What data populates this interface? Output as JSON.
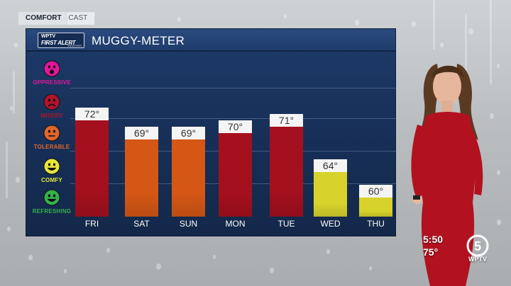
{
  "topbar": {
    "segment1": "COMFORT",
    "segment2": "CAST"
  },
  "logo": {
    "line1": "WPTV",
    "line2": "FIRST ALERT",
    "line3": "WEATHER"
  },
  "panel": {
    "title": "MUGGY-METER"
  },
  "scale": [
    {
      "label": "OPPRESSIVE",
      "color": "#e3169b",
      "mood": "shocked"
    },
    {
      "label": "MISERY",
      "color": "#b0132b",
      "mood": "frown"
    },
    {
      "label": "TOLERABLE",
      "color": "#e0662a",
      "mood": "neutral"
    },
    {
      "label": "COMFY",
      "color": "#e7e63a",
      "mood": "smile"
    },
    {
      "label": "REFRESHING",
      "color": "#35b04a",
      "mood": "smile"
    }
  ],
  "chart_data": {
    "type": "bar",
    "title": "MUGGY-METER",
    "categories": [
      "FRI",
      "SAT",
      "SUN",
      "MON",
      "TUE",
      "WED",
      "THU"
    ],
    "values": [
      72,
      69,
      69,
      70,
      71,
      64,
      60
    ],
    "value_labels": [
      "72°",
      "69°",
      "69°",
      "70°",
      "71°",
      "64°",
      "60°"
    ],
    "bar_colors": [
      "#a5101e",
      "#d45716",
      "#d45716",
      "#a5101e",
      "#a5101e",
      "#d7d32c",
      "#d7d32c"
    ],
    "ylim": [
      55,
      75
    ],
    "grid": true,
    "legend": "none"
  },
  "clock": {
    "time": "5:50",
    "temp": "75°"
  },
  "station": {
    "name": "WPTV",
    "channel": "5"
  }
}
